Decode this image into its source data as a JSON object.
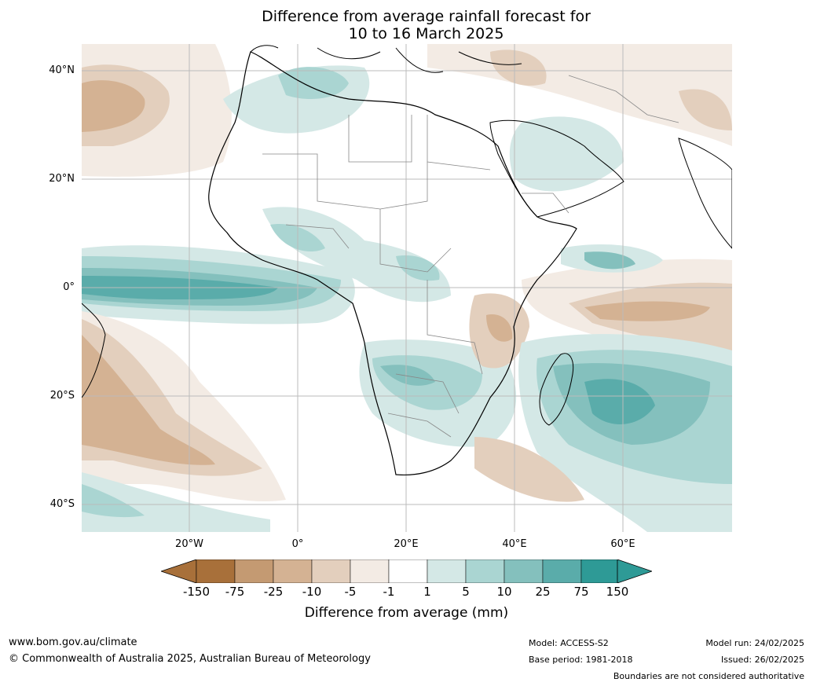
{
  "title": {
    "line1": "Difference from average rainfall forecast for",
    "line2": "10 to 16 March 2025"
  },
  "map": {
    "latitude_labels": [
      "40°N",
      "20°N",
      "0°",
      "20°S",
      "40°S"
    ],
    "longitude_labels": [
      "20°W",
      "0°",
      "20°E",
      "40°E",
      "60°E"
    ],
    "colors": {
      "dry_strong": "#a8703a",
      "dry_75": "#c49a72",
      "dry_25": "#d4b293",
      "dry_10": "#e3cfbd",
      "dry_5": "#f3ebe4",
      "neutral": "#ffffff",
      "wet_5": "#d4e8e6",
      "wet_10": "#aad5d2",
      "wet_25": "#84c0bd",
      "wet_75": "#5aacaa",
      "wet_strong": "#2e9a96"
    }
  },
  "colorbar": {
    "ticks": [
      "-150",
      "-75",
      "-25",
      "-10",
      "-5",
      "-1",
      "1",
      "5",
      "10",
      "25",
      "75",
      "150"
    ],
    "label": "Difference from average (mm)"
  },
  "footer": {
    "website": "www.bom.gov.au/climate",
    "copyright": "© Commonwealth of Australia 2025, Australian Bureau of Meteorology",
    "model": "Model: ACCESS-S2",
    "base_period": "Base period: 1981-2018",
    "model_run": "Model run: 24/02/2025",
    "issued": "Issued: 26/02/2025",
    "disclaimer": "Boundaries are not considered authoritative"
  }
}
